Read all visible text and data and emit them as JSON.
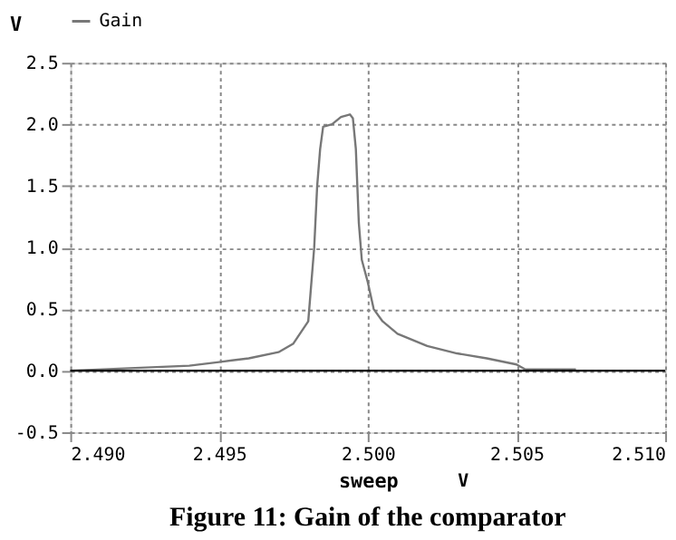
{
  "chart_data": {
    "type": "line",
    "title": "Figure 11: Gain of the comparator",
    "xlabel": "sweep",
    "ylabel": "V",
    "annotations": [
      "V"
    ],
    "series": [
      {
        "name": "Gain",
        "color": "#777777",
        "x": [
          2.49,
          2.492,
          2.494,
          2.495,
          2.496,
          2.497,
          2.4975,
          2.498,
          2.4982,
          2.4983,
          2.4984,
          2.4985,
          2.4988,
          2.4991,
          2.4994,
          2.4995,
          2.4996,
          2.4997,
          2.4998,
          2.5,
          2.5002,
          2.5005,
          2.501,
          2.502,
          2.503,
          2.504,
          2.505,
          2.5053,
          2.507
        ],
        "values": [
          0.0,
          0.02,
          0.04,
          0.07,
          0.1,
          0.15,
          0.22,
          0.4,
          1.0,
          1.5,
          1.8,
          1.98,
          2.0,
          2.06,
          2.08,
          2.05,
          1.8,
          1.2,
          0.9,
          0.72,
          0.5,
          0.4,
          0.3,
          0.2,
          0.14,
          0.1,
          0.05,
          0.01,
          0.01
        ]
      }
    ],
    "xlim": [
      2.49,
      2.51
    ],
    "xticks": [
      {
        "value": 2.49,
        "label": "2.490"
      },
      {
        "value": 2.495,
        "label": "2.495"
      },
      {
        "value": 2.5,
        "label": "2.500"
      },
      {
        "value": 2.505,
        "label": "2.505"
      },
      {
        "value": 2.51,
        "label": "2.510"
      }
    ],
    "ylim": [
      -0.5,
      2.5
    ],
    "yticks": [
      -0.5,
      {
        "value": 0,
        "label": "0.0"
      },
      0.5,
      {
        "value": 1,
        "label": "1.0"
      },
      1.5,
      {
        "value": 2,
        "label": "2.0"
      },
      2.5
    ],
    "ref_lines": [
      {
        "axis": "y",
        "value": 0,
        "color": "#000000"
      }
    ],
    "grid": true,
    "legend": "top",
    "marker": "none",
    "line_style": "solid"
  }
}
